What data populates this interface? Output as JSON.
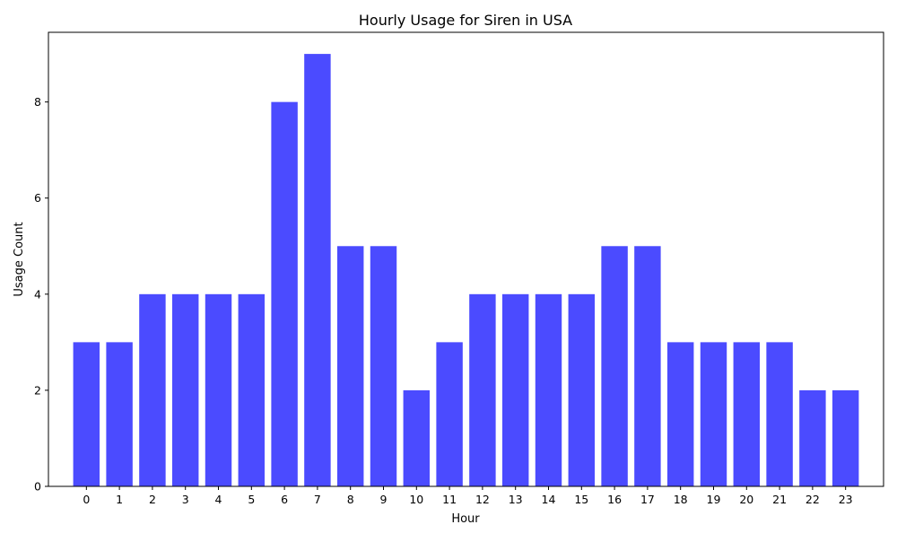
{
  "chart_data": {
    "type": "bar",
    "title": "Hourly Usage for Siren in USA",
    "xlabel": "Hour",
    "ylabel": "Usage Count",
    "categories": [
      "0",
      "1",
      "2",
      "3",
      "4",
      "5",
      "6",
      "7",
      "8",
      "9",
      "10",
      "11",
      "12",
      "13",
      "14",
      "15",
      "16",
      "17",
      "18",
      "19",
      "20",
      "21",
      "22",
      "23"
    ],
    "values": [
      3,
      3,
      4,
      4,
      4,
      4,
      8,
      9,
      5,
      5,
      2,
      3,
      4,
      4,
      4,
      4,
      5,
      5,
      3,
      3,
      3,
      3,
      2,
      2
    ],
    "ylim": [
      0,
      9.45
    ],
    "yticks": [
      "0",
      "2",
      "4",
      "6",
      "8"
    ],
    "grid": false,
    "legend": "none",
    "colors": {
      "bar": "#4b4bff",
      "axis": "#000000",
      "background": "#ffffff"
    }
  }
}
